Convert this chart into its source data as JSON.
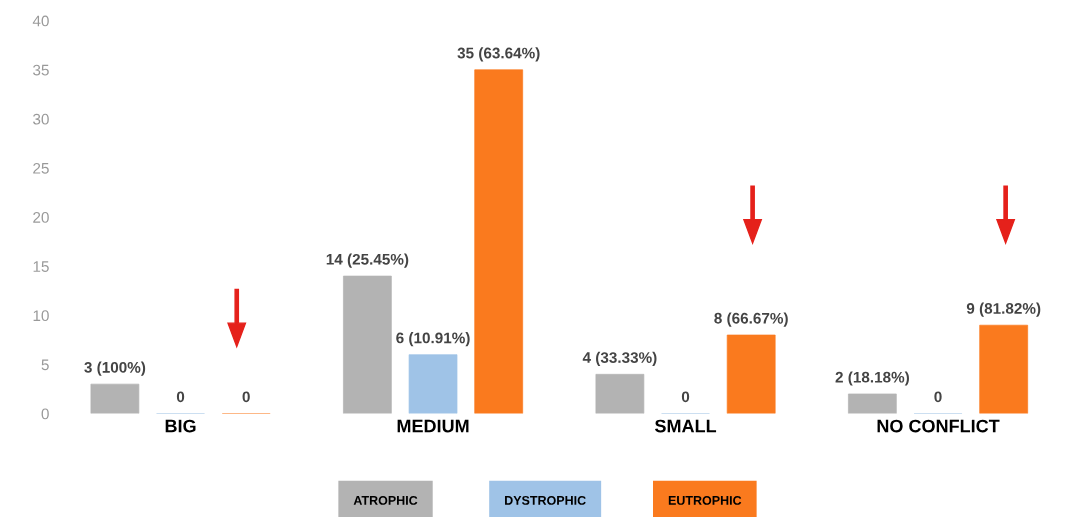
{
  "chart_data": {
    "type": "bar",
    "categories": [
      "BIG",
      "MEDIUM",
      "SMALL",
      "NO CONFLICT"
    ],
    "series": [
      {
        "name": "ATROPHIC",
        "color": "#b3b3b3",
        "values": [
          3,
          14,
          4,
          2
        ],
        "value_labels": [
          "3 (100%)",
          "14 (25.45%)",
          "4 (33.33%)",
          "2 (18.18%)"
        ]
      },
      {
        "name": "DYSTROPHIC",
        "color": "#9fc3e7",
        "values": [
          0,
          6,
          0,
          0
        ],
        "value_labels": [
          "0",
          "6 (10.91%)",
          "0",
          "0"
        ]
      },
      {
        "name": "EUTROPHIC",
        "color": "#fa7a1e",
        "values": [
          0,
          35,
          8,
          9
        ],
        "value_labels": [
          "0",
          "35 (63.64%)",
          "8 (66.67%)",
          "9 (81.82%)"
        ]
      }
    ],
    "ylim": [
      0,
      40
    ],
    "yticks": [
      0,
      5,
      10,
      15,
      20,
      25,
      30,
      35,
      40
    ],
    "grid": false,
    "legend": "bottom"
  }
}
